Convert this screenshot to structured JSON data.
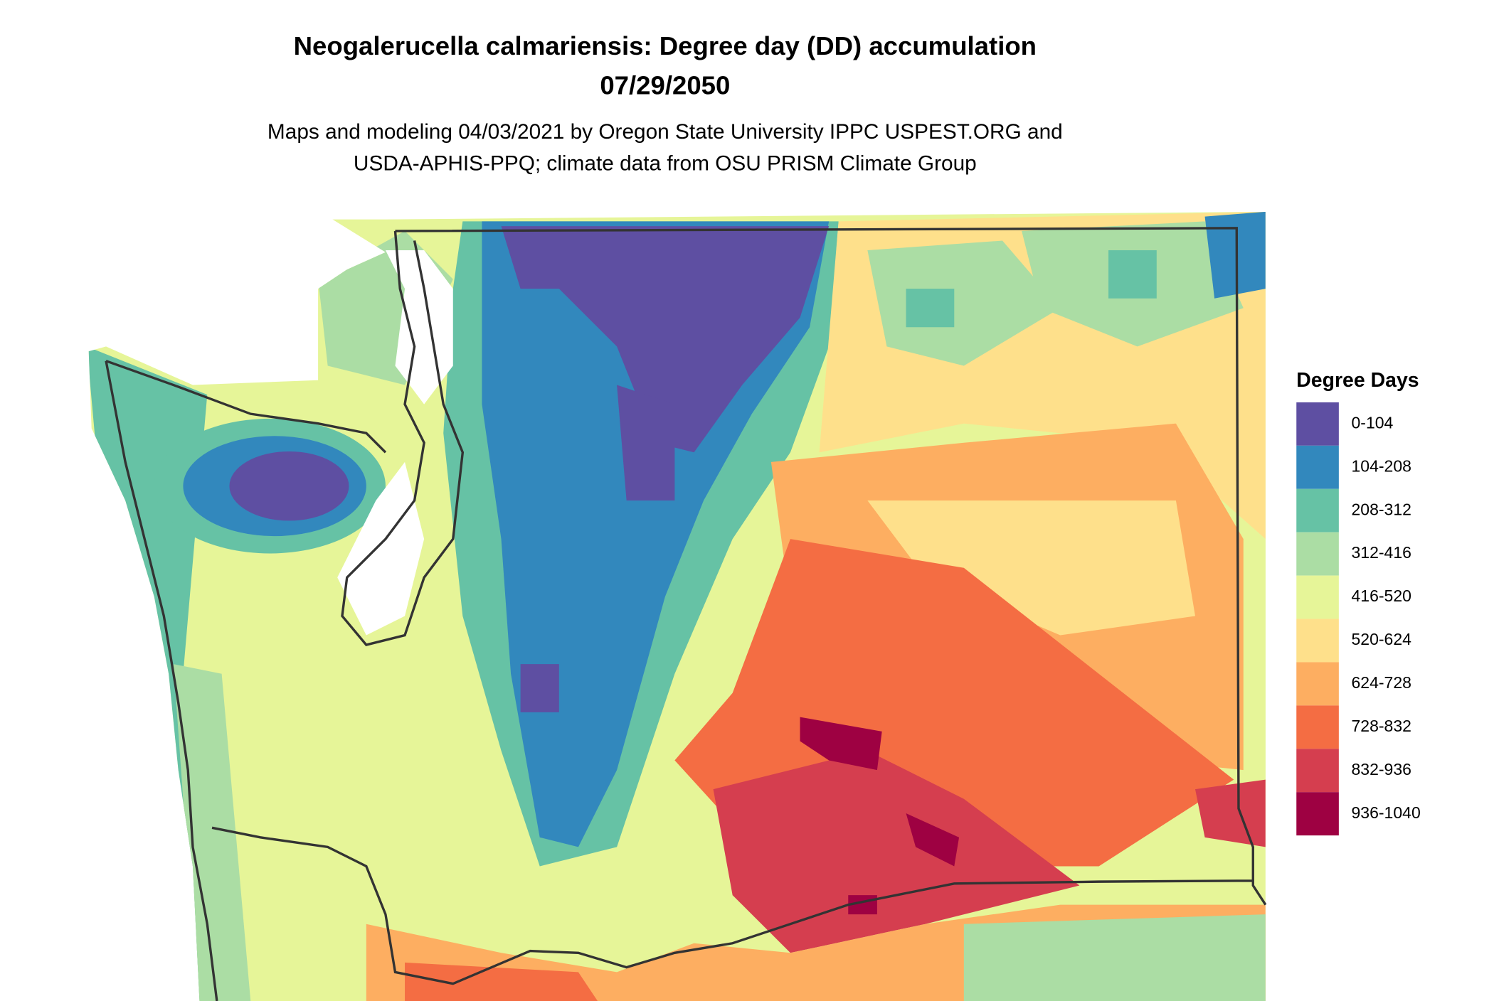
{
  "title_lines": [
    "Neogalerucella calmariensis: Degree day (DD) accumulation",
    "07/29/2050"
  ],
  "subtitle_lines": [
    "Maps and modeling 04/03/2021 by Oregon State University IPPC USPEST.ORG and",
    "USDA-APHIS-PPQ; climate data from OSU PRISM Climate Group"
  ],
  "legend": {
    "title": "Degree Days",
    "items": [
      {
        "label": "0-104",
        "color": "#5e4fa2"
      },
      {
        "label": "104-208",
        "color": "#3288bd"
      },
      {
        "label": "208-312",
        "color": "#66c2a5"
      },
      {
        "label": "312-416",
        "color": "#abdda4"
      },
      {
        "label": "416-520",
        "color": "#e6f598"
      },
      {
        "label": "520-624",
        "color": "#fee08b"
      },
      {
        "label": "624-728",
        "color": "#fdae61"
      },
      {
        "label": "728-832",
        "color": "#f46d43"
      },
      {
        "label": "832-936",
        "color": "#d53e4f"
      },
      {
        "label": "936-1040",
        "color": "#9e0142"
      }
    ]
  }
}
